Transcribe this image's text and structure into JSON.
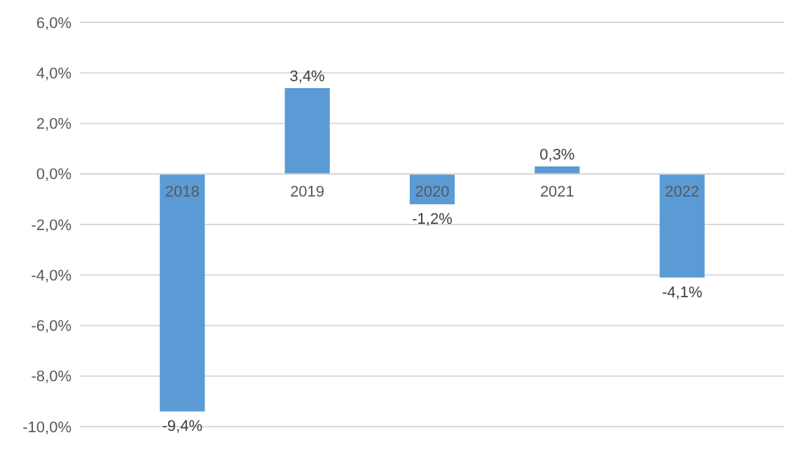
{
  "chart_data": {
    "type": "bar",
    "categories": [
      "2018",
      "2019",
      "2020",
      "2021",
      "2022"
    ],
    "values": [
      -9.4,
      3.4,
      -1.2,
      0.3,
      -4.1
    ],
    "value_labels": [
      "-9,4%",
      "3,4%",
      "-1,2%",
      "0,3%",
      "-4,1%"
    ],
    "color": "#5b9bd5",
    "ylim": [
      -10,
      6
    ],
    "yticks": [
      {
        "value": -10,
        "label": "-10,0%"
      },
      {
        "value": -8,
        "label": "-8,0%"
      },
      {
        "value": -6,
        "label": "-6,0%"
      },
      {
        "value": -4,
        "label": "-4,0%"
      },
      {
        "value": -2,
        "label": "-2,0%"
      },
      {
        "value": 0,
        "label": "0,0%"
      },
      {
        "value": 2,
        "label": "2,0%"
      },
      {
        "value": 4,
        "label": "4,0%"
      },
      {
        "value": 6,
        "label": "6,0%"
      }
    ],
    "grid": "y"
  }
}
